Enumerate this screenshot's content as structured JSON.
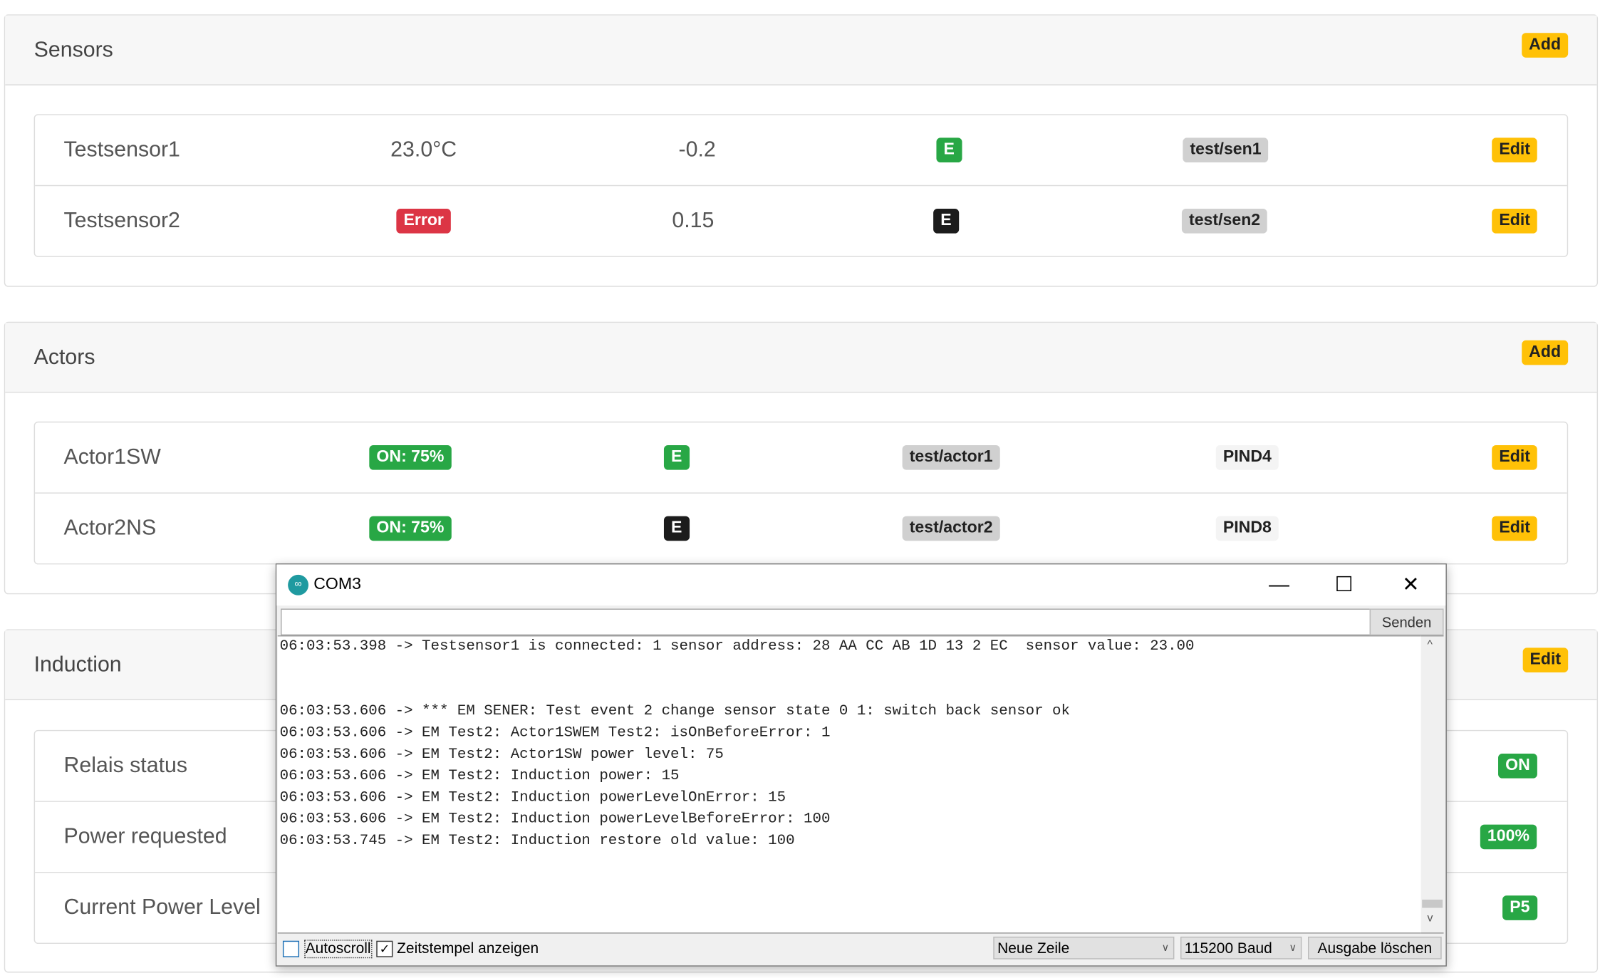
{
  "sensors": {
    "title": "Sensors",
    "add_label": "Add",
    "rows": [
      {
        "name": "Testsensor1",
        "value": "23.0°C",
        "offset": "-0.2",
        "flag": "E",
        "flag_color": "#28a745",
        "topic": "test/sen1",
        "edit": "Edit"
      },
      {
        "name": "Testsensor2",
        "value": "Error",
        "offset": "0.15",
        "flag": "E",
        "flag_color": "#1c1c1c",
        "topic": "test/sen2",
        "edit": "Edit"
      }
    ]
  },
  "actors": {
    "title": "Actors",
    "add_label": "Add",
    "rows": [
      {
        "name": "Actor1SW",
        "state": "ON: 75%",
        "flag": "E",
        "flag_color": "#28a745",
        "topic": "test/actor1",
        "pin": "PIND4",
        "edit": "Edit"
      },
      {
        "name": "Actor2NS",
        "state": "ON: 75%",
        "flag": "E",
        "flag_color": "#1c1c1c",
        "topic": "test/actor2",
        "pin": "PIND8",
        "edit": "Edit"
      }
    ]
  },
  "induction": {
    "title": "Induction",
    "edit_label": "Edit",
    "rows": [
      {
        "label": "Relais status",
        "value": "ON"
      },
      {
        "label": "Power requested",
        "value": "100%"
      },
      {
        "label": "Current Power Level",
        "value": "P5"
      }
    ]
  },
  "serial": {
    "title": "COM3",
    "send_label": "Senden",
    "input_value": "",
    "lines": [
      "06:03:53.398 -> Testsensor1 is connected: 1 sensor address: 28 AA CC AB 1D 13 2 EC  sensor value: 23.00",
      "",
      "",
      "06:03:53.606 -> *** EM SENER: Test event 2 change sensor state 0 1: switch back sensor ok",
      "06:03:53.606 -> EM Test2: Actor1SWEM Test2: isOnBeforeError: 1",
      "06:03:53.606 -> EM Test2: Actor1SW power level: 75",
      "06:03:53.606 -> EM Test2: Induction power: 15",
      "06:03:53.606 -> EM Test2: Induction powerLevelOnError: 15",
      "06:03:53.606 -> EM Test2: Induction powerLevelBeforeError: 100",
      "06:03:53.745 -> EM Test2: Induction restore old value: 100"
    ],
    "autoscroll_label": "Autoscroll",
    "autoscroll_checked": false,
    "timestamp_label": "Zeitstempel anzeigen",
    "timestamp_checked": true,
    "line_ending": "Neue Zeile",
    "baud": "115200 Baud",
    "clear_label": "Ausgabe löschen"
  },
  "colors": {
    "warning": "#ffc107",
    "success": "#28a745",
    "danger": "#dc3545",
    "dark": "#1c1c1c",
    "secondary": "#d0d0d0"
  }
}
